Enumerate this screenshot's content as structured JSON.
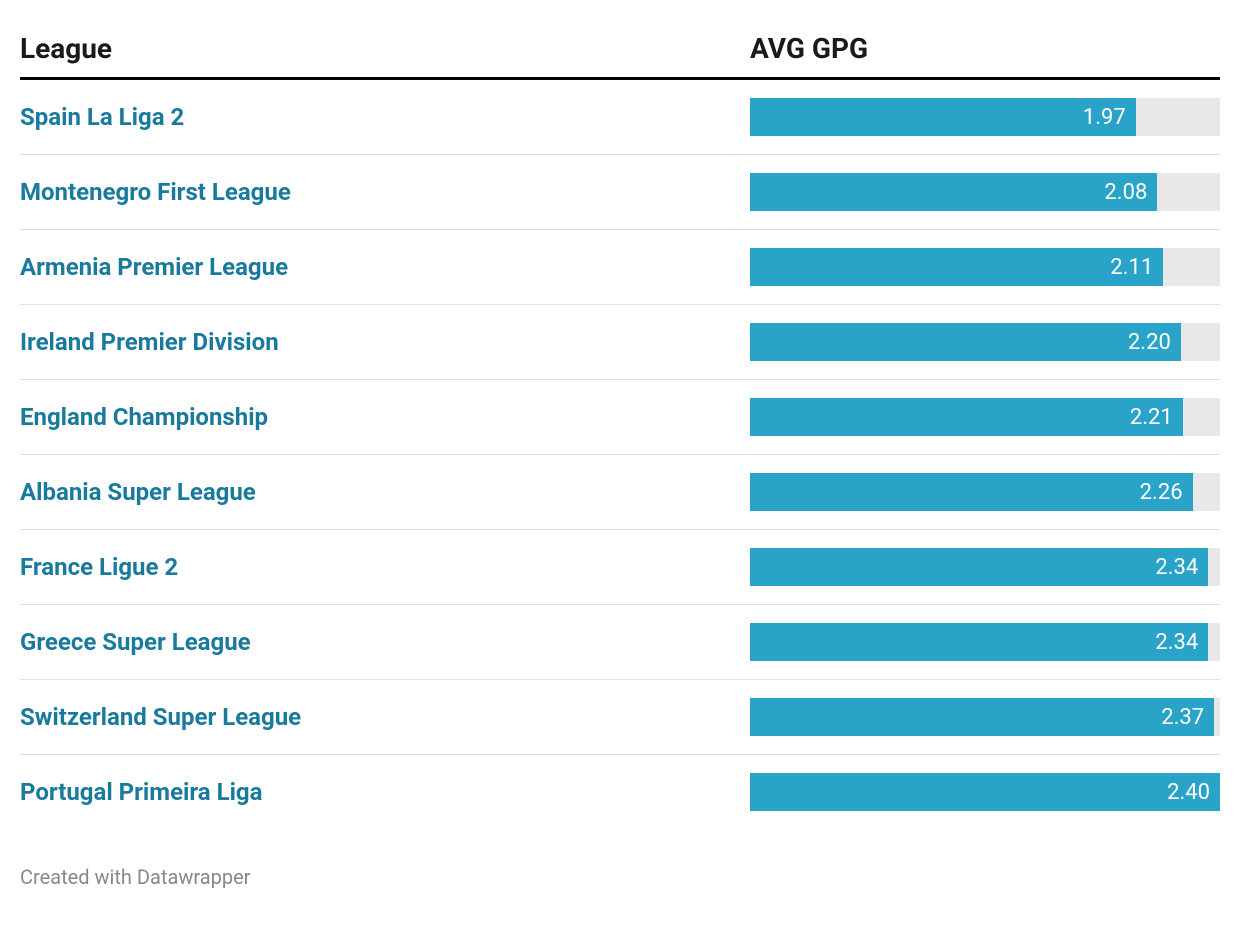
{
  "chart": {
    "type": "bar",
    "headers": {
      "league": "League",
      "value": "AVG GPG"
    },
    "max_value": 2.4,
    "bar_color": "#2aa3c9",
    "track_color": "#e8e8e8",
    "link_color": "#1a7a9e",
    "value_text_color": "#ffffff",
    "header_text_color": "#1a1a1a",
    "border_color": "#e0e0e0",
    "header_border_color": "#333333",
    "background_color": "#ffffff",
    "rows": [
      {
        "label": "Spain La Liga 2",
        "value": 1.97,
        "value_text": "1.97"
      },
      {
        "label": "Montenegro First League",
        "value": 2.08,
        "value_text": "2.08"
      },
      {
        "label": "Armenia Premier League",
        "value": 2.11,
        "value_text": "2.11"
      },
      {
        "label": "Ireland Premier Division",
        "value": 2.2,
        "value_text": "2.20"
      },
      {
        "label": "England Championship",
        "value": 2.21,
        "value_text": "2.21"
      },
      {
        "label": "Albania Super League",
        "value": 2.26,
        "value_text": "2.26"
      },
      {
        "label": "France Ligue 2",
        "value": 2.34,
        "value_text": "2.34"
      },
      {
        "label": "Greece Super League",
        "value": 2.34,
        "value_text": "2.34"
      },
      {
        "label": "Switzerland Super League",
        "value": 2.37,
        "value_text": "2.37"
      },
      {
        "label": "Portugal Primeira Liga",
        "value": 2.4,
        "value_text": "2.40"
      }
    ],
    "footer": "Created with Datawrapper"
  }
}
